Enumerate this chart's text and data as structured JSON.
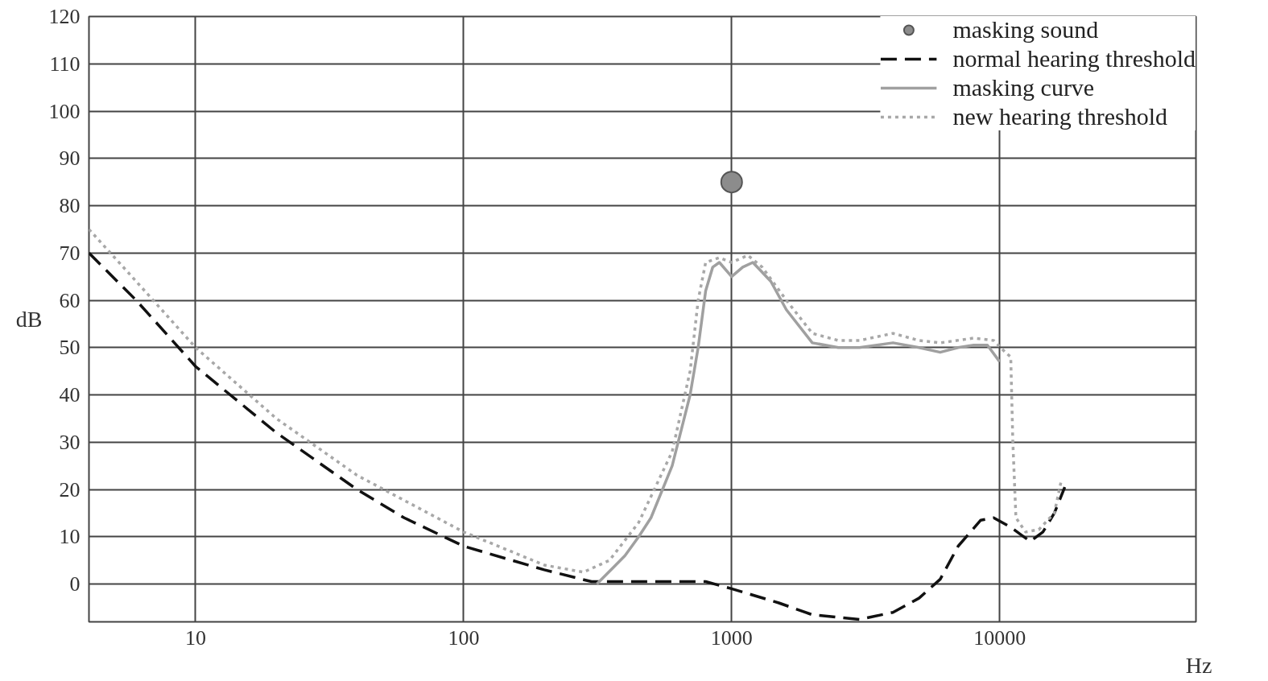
{
  "chart_data": {
    "type": "line",
    "xlabel": "Hz",
    "ylabel": "dB",
    "log": "x",
    "xlim": [
      4,
      54000
    ],
    "ylim": [
      -8,
      120
    ],
    "xticks": [
      10,
      100,
      1000,
      10000
    ],
    "yticks": [
      0,
      10,
      20,
      30,
      40,
      50,
      60,
      70,
      80,
      90,
      100,
      110,
      120
    ],
    "grid": true,
    "legend": "top right",
    "series": [
      {
        "name": "masking sound",
        "type": "scatter",
        "marker": "circle",
        "color": "#8c8c8c",
        "x": [
          1000
        ],
        "values": [
          85
        ]
      },
      {
        "name": "normal hearing threshold",
        "line_style": "dashed",
        "color": "#111111",
        "x": [
          4,
          6,
          10,
          20,
          40,
          60,
          100,
          200,
          300,
          500,
          800,
          1000,
          1500,
          2000,
          3000,
          4000,
          5000,
          6000,
          7000,
          8500,
          9500,
          11000,
          13000,
          14500,
          16000,
          17500
        ],
        "values": [
          70,
          60,
          46,
          32,
          20,
          14,
          8,
          3,
          0.5,
          0.5,
          0.5,
          -1,
          -4,
          -6.5,
          -7.5,
          -6,
          -3,
          1,
          8,
          13.5,
          14,
          12,
          9,
          11,
          15,
          20.5
        ]
      },
      {
        "name": "masking curve",
        "line_style": "solid",
        "color": "#a0a0a0",
        "x": [
          314,
          400,
          450,
          500,
          600,
          700,
          750,
          800,
          850,
          900,
          1000,
          1100,
          1200,
          1400,
          1600,
          2000,
          2500,
          3000,
          4000,
          5000,
          6000,
          7000,
          8000,
          9000,
          10000
        ],
        "values": [
          0,
          6,
          10,
          14,
          25,
          40,
          50,
          62,
          67,
          68,
          65,
          67,
          68,
          64,
          58,
          51,
          50,
          50,
          51,
          50,
          49,
          50,
          50.5,
          50.5,
          47
        ]
      },
      {
        "name": "new hearing threshold",
        "line_style": "dotted",
        "color": "#a8a8a8",
        "x": [
          4,
          6,
          10,
          20,
          40,
          100,
          200,
          280,
          350,
          450,
          600,
          700,
          750,
          800,
          900,
          1000,
          1150,
          1300,
          1600,
          2000,
          2500,
          3000,
          4000,
          5000,
          6000,
          8000,
          9500,
          10500,
          11000,
          11200,
          11500,
          12500,
          14000,
          16000,
          17000
        ],
        "values": [
          75,
          64,
          50,
          35,
          23,
          11,
          4,
          2.5,
          5,
          13,
          28,
          45,
          60,
          68,
          69,
          68,
          69.5,
          67,
          60,
          53,
          51.5,
          51.5,
          53,
          51.5,
          51,
          52,
          51.5,
          49,
          48,
          30,
          14,
          11,
          11.5,
          15,
          22
        ]
      }
    ]
  }
}
